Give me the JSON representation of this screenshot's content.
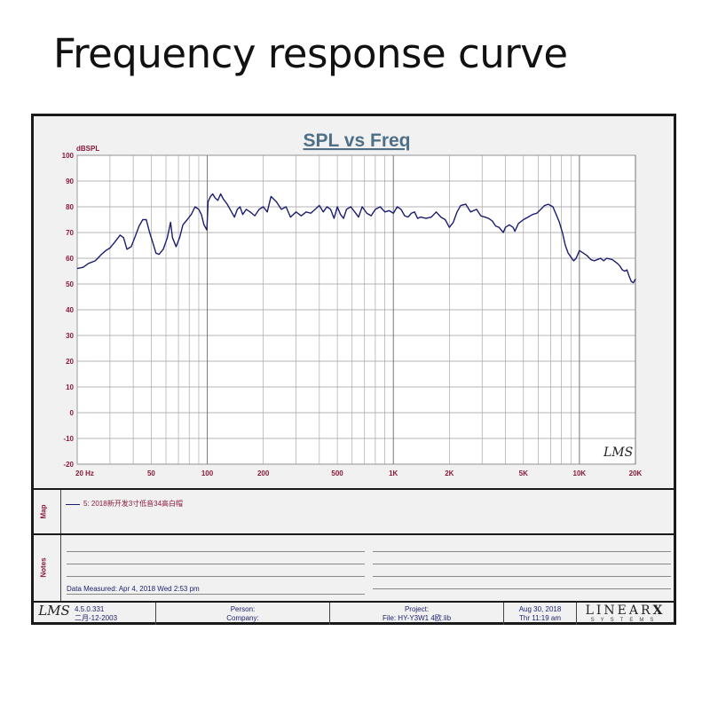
{
  "page_title": "Frequency response curve",
  "chart_data": {
    "type": "line",
    "title": "SPL vs Freq",
    "ylabel": "dBSPL",
    "xscale": "log",
    "xlim": [
      20,
      20000
    ],
    "ylim": [
      -20,
      100
    ],
    "yticks": [
      100,
      90,
      80,
      70,
      60,
      50,
      40,
      30,
      20,
      10,
      0,
      -10,
      -20
    ],
    "xticks": [
      {
        "value": 20,
        "label": "20  Hz"
      },
      {
        "value": 50,
        "label": "50"
      },
      {
        "value": 100,
        "label": "100"
      },
      {
        "value": 200,
        "label": "200"
      },
      {
        "value": 500,
        "label": "500"
      },
      {
        "value": 1000,
        "label": "1K"
      },
      {
        "value": 2000,
        "label": "2K"
      },
      {
        "value": 5000,
        "label": "5K"
      },
      {
        "value": 10000,
        "label": "10K"
      },
      {
        "value": 20000,
        "label": "20K"
      }
    ],
    "grid": true,
    "watermark": "LMS",
    "series": [
      {
        "name": "5: 2018新开发3寸低音34高白帽",
        "color": "#1b1e6e",
        "points": [
          [
            20,
            56
          ],
          [
            21.5,
            56.5
          ],
          [
            23,
            58
          ],
          [
            25,
            59
          ],
          [
            27,
            61.5
          ],
          [
            28.5,
            63
          ],
          [
            30,
            64
          ],
          [
            32,
            66.5
          ],
          [
            34,
            69
          ],
          [
            35.5,
            68
          ],
          [
            37,
            63.5
          ],
          [
            39,
            64.5
          ],
          [
            41,
            68.5
          ],
          [
            43,
            72.5
          ],
          [
            45,
            75
          ],
          [
            47,
            75
          ],
          [
            49,
            70
          ],
          [
            51,
            66
          ],
          [
            53,
            62
          ],
          [
            55,
            61.5
          ],
          [
            58,
            63.5
          ],
          [
            61,
            68
          ],
          [
            63.5,
            74
          ],
          [
            65,
            68
          ],
          [
            68,
            64.5
          ],
          [
            71,
            68
          ],
          [
            74,
            73
          ],
          [
            78,
            75
          ],
          [
            82,
            77
          ],
          [
            86,
            80
          ],
          [
            90,
            79
          ],
          [
            93,
            77
          ],
          [
            96,
            73
          ],
          [
            99.5,
            71
          ],
          [
            101,
            82
          ],
          [
            104,
            84
          ],
          [
            107,
            85
          ],
          [
            110,
            83.5
          ],
          [
            114,
            82.5
          ],
          [
            118,
            85
          ],
          [
            122,
            83
          ],
          [
            128,
            81
          ],
          [
            135,
            78
          ],
          [
            140,
            76
          ],
          [
            145,
            79
          ],
          [
            150,
            80
          ],
          [
            155,
            77
          ],
          [
            162,
            79
          ],
          [
            170,
            78
          ],
          [
            180,
            76.5
          ],
          [
            190,
            79
          ],
          [
            200,
            80
          ],
          [
            210,
            78
          ],
          [
            220,
            84
          ],
          [
            235,
            82
          ],
          [
            250,
            79
          ],
          [
            265,
            80
          ],
          [
            280,
            76
          ],
          [
            300,
            78
          ],
          [
            320,
            76.5
          ],
          [
            340,
            78
          ],
          [
            360,
            77.5
          ],
          [
            380,
            79
          ],
          [
            400,
            80.5
          ],
          [
            420,
            78
          ],
          [
            440,
            80
          ],
          [
            460,
            79
          ],
          [
            480,
            75.5
          ],
          [
            500,
            80
          ],
          [
            520,
            77
          ],
          [
            540,
            75.5
          ],
          [
            560,
            79
          ],
          [
            590,
            80
          ],
          [
            620,
            78
          ],
          [
            650,
            76
          ],
          [
            680,
            80
          ],
          [
            720,
            77.5
          ],
          [
            760,
            76.5
          ],
          [
            800,
            79
          ],
          [
            850,
            80
          ],
          [
            900,
            78
          ],
          [
            950,
            78.5
          ],
          [
            1000,
            77.5
          ],
          [
            1050,
            80
          ],
          [
            1100,
            79
          ],
          [
            1150,
            76.5
          ],
          [
            1200,
            76
          ],
          [
            1250,
            77.5
          ],
          [
            1300,
            78
          ],
          [
            1350,
            75.5
          ],
          [
            1400,
            76
          ],
          [
            1500,
            75.5
          ],
          [
            1600,
            76
          ],
          [
            1700,
            78
          ],
          [
            1800,
            76
          ],
          [
            1900,
            75
          ],
          [
            2000,
            72
          ],
          [
            2100,
            74
          ],
          [
            2200,
            78
          ],
          [
            2300,
            80.5
          ],
          [
            2450,
            81
          ],
          [
            2600,
            78
          ],
          [
            2800,
            79
          ],
          [
            2950,
            76.5
          ],
          [
            3100,
            76
          ],
          [
            3250,
            75.5
          ],
          [
            3400,
            74.5
          ],
          [
            3550,
            72.5
          ],
          [
            3700,
            72
          ],
          [
            3900,
            70
          ],
          [
            4000,
            72
          ],
          [
            4200,
            73
          ],
          [
            4400,
            72
          ],
          [
            4500,
            70.5
          ],
          [
            4700,
            73.5
          ],
          [
            5000,
            75
          ],
          [
            5300,
            76
          ],
          [
            5600,
            77
          ],
          [
            5900,
            77.5
          ],
          [
            6200,
            79
          ],
          [
            6500,
            80.5
          ],
          [
            6800,
            81
          ],
          [
            7200,
            80
          ],
          [
            7500,
            77
          ],
          [
            7800,
            74
          ],
          [
            8100,
            70
          ],
          [
            8400,
            65
          ],
          [
            8700,
            62
          ],
          [
            9000,
            60.5
          ],
          [
            9300,
            59
          ],
          [
            9600,
            60
          ],
          [
            10000,
            63
          ],
          [
            10500,
            62
          ],
          [
            11000,
            61
          ],
          [
            11500,
            59.5
          ],
          [
            12000,
            59
          ],
          [
            12500,
            59.5
          ],
          [
            13000,
            60
          ],
          [
            13500,
            59
          ],
          [
            14000,
            60
          ],
          [
            15000,
            59.5
          ],
          [
            16000,
            58
          ],
          [
            16500,
            57
          ],
          [
            17000,
            55.5
          ],
          [
            17500,
            55
          ],
          [
            18000,
            55.5
          ],
          [
            18500,
            53
          ],
          [
            19000,
            51
          ],
          [
            19500,
            50.5
          ],
          [
            20000,
            52
          ]
        ]
      }
    ]
  },
  "panels": {
    "map_label": "Map",
    "notes_label": "Notes",
    "data_measured": "Data Measured: Apr  4, 2018  Wed  2:53 pm"
  },
  "footer": {
    "logo": "LMS",
    "version": "4.5.0.331",
    "version_date": "二月-12-2003",
    "person_label": "Person:",
    "company_label": "Company:",
    "project_label": "Project:",
    "file_label": "File: HY-Y3W1 4欧.lib",
    "date": "Aug 30, 2018",
    "time": "Thr  11:19 am",
    "brand": "LINEAR",
    "brand_x": "X",
    "brand_sub": "SYSTEMS"
  }
}
